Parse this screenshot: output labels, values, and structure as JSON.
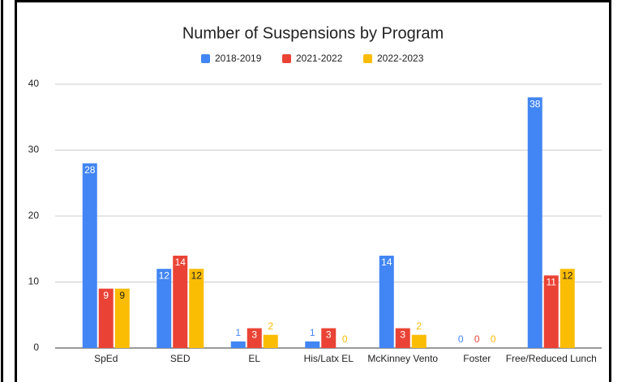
{
  "chart_data": {
    "type": "bar",
    "title": "Number of Suspensions by Program",
    "categories": [
      "SpEd",
      "SED",
      "EL",
      "His/Latx EL",
      "McKinney Vento",
      "Foster",
      "Free/Reduced Lunch"
    ],
    "series": [
      {
        "name": "2018-2019",
        "color": "#4285f4",
        "values": [
          28,
          12,
          1,
          1,
          14,
          0,
          38
        ]
      },
      {
        "name": "2021-2022",
        "color": "#ea4335",
        "values": [
          9,
          14,
          3,
          3,
          3,
          0,
          11
        ]
      },
      {
        "name": "2022-2023",
        "color": "#fbbc04",
        "values": [
          9,
          12,
          2,
          0,
          2,
          0,
          12
        ]
      }
    ],
    "ylim": [
      0,
      40
    ],
    "yticks": [
      0,
      10,
      20,
      30,
      40
    ],
    "grid": true,
    "legend": "top"
  }
}
